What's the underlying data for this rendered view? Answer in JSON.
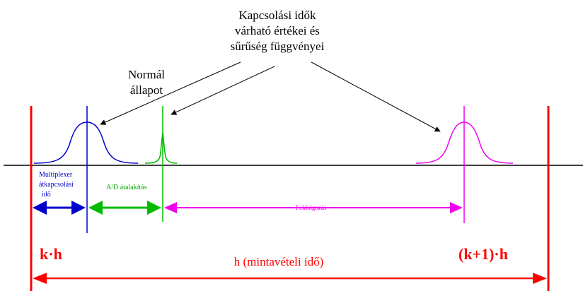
{
  "title": {
    "line1": "Kapcsolási idők",
    "line2": "várható értékei és",
    "line3": "sűrűség függvényei"
  },
  "normal_state": {
    "line1": "Normál",
    "line2": "állapot"
  },
  "multiplexer": {
    "line1": "Multiplexer",
    "line2": "átkapcsolási",
    "line3": "idő"
  },
  "ad_conversion": "A/D átalakítás",
  "processing": "Feldolgozás",
  "kh": "k·h",
  "k1h": "(k+1)·h",
  "period": "h  (mintavételi idő)",
  "colors": {
    "red": "#ff0000",
    "blue": "#0000cc",
    "green": "#00bb00",
    "magenta": "#ee00ee",
    "black": "#000000"
  }
}
